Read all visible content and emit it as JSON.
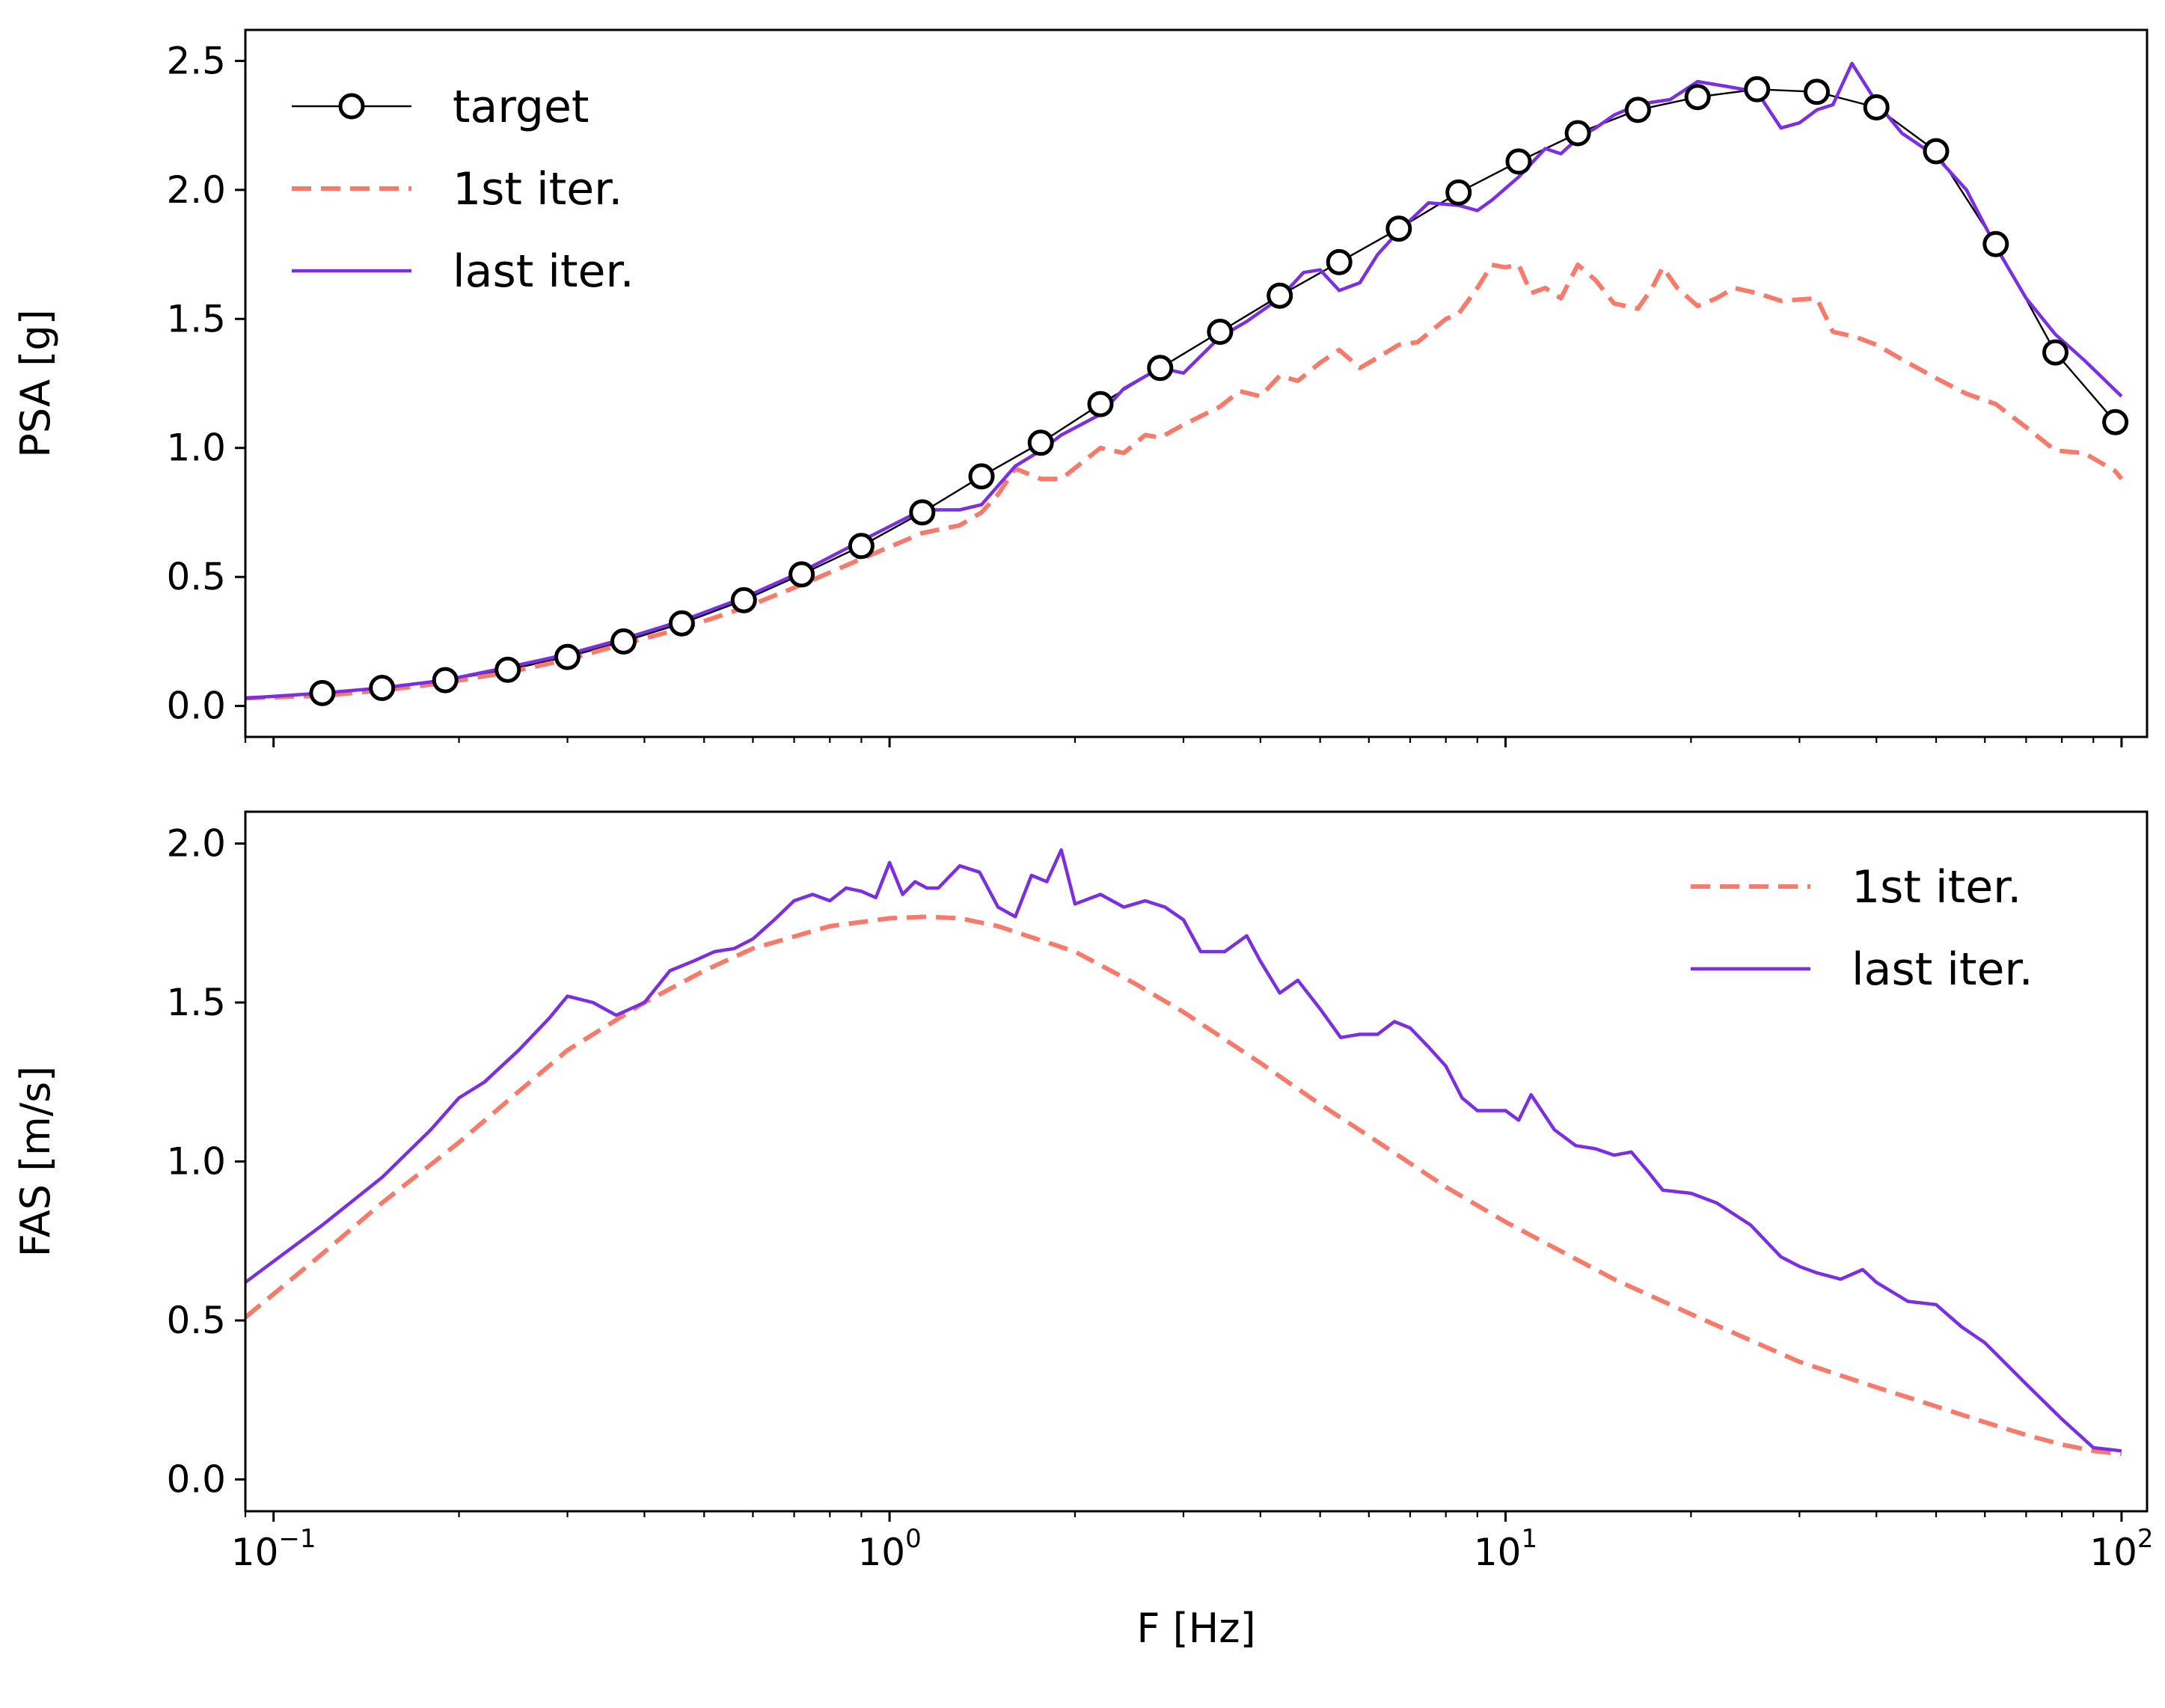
{
  "chart_data": [
    {
      "type": "line",
      "ylabel": "PSA [g]",
      "xlabel": "",
      "xscale": "log",
      "xlim": [
        0.09,
        110
      ],
      "ylim": [
        -0.12,
        2.62
      ],
      "yticks": [
        0.0,
        0.5,
        1.0,
        1.5,
        2.0,
        2.5
      ],
      "ytick_labels": [
        "0.0",
        "0.5",
        "1.0",
        "1.5",
        "2.0",
        "2.5"
      ],
      "legend_position": "top-left",
      "series": [
        {
          "name": "target",
          "style": "line-circles",
          "color": "#000000",
          "x": [
            0.12,
            0.15,
            0.19,
            0.24,
            0.3,
            0.37,
            0.46,
            0.58,
            0.72,
            0.9,
            1.13,
            1.41,
            1.76,
            2.2,
            2.75,
            3.44,
            4.3,
            5.37,
            6.71,
            8.39,
            10.5,
            13.1,
            16.4,
            20.5,
            25.6,
            32.0,
            40.0,
            50.0,
            62.5,
            78.1,
            97.7
          ],
          "y": [
            0.05,
            0.07,
            0.1,
            0.14,
            0.19,
            0.25,
            0.32,
            0.41,
            0.51,
            0.62,
            0.75,
            0.89,
            1.02,
            1.17,
            1.31,
            1.45,
            1.59,
            1.72,
            1.85,
            1.99,
            2.11,
            2.22,
            2.31,
            2.36,
            2.39,
            2.38,
            2.32,
            2.15,
            1.79,
            1.37,
            1.1
          ]
        },
        {
          "name": "1st iter.",
          "style": "dashed",
          "color": "#f87a6a",
          "x": [
            0.09,
            0.12,
            0.15,
            0.19,
            0.24,
            0.3,
            0.37,
            0.46,
            0.58,
            0.72,
            0.9,
            1.13,
            1.3,
            1.41,
            1.5,
            1.6,
            1.76,
            1.9,
            2.2,
            2.4,
            2.6,
            2.75,
            3.0,
            3.44,
            3.7,
            4.0,
            4.3,
            4.6,
            5.0,
            5.37,
            5.8,
            6.2,
            6.71,
            7.2,
            8.0,
            8.39,
            9.0,
            9.5,
            10.0,
            10.5,
            11.0,
            11.6,
            12.3,
            13.1,
            14.0,
            15.0,
            16.4,
            17.3,
            18.0,
            19.0,
            20.5,
            22.0,
            23.5,
            25.6,
            28.0,
            32.0,
            34.0,
            37.0,
            40.0,
            45.0,
            50.0,
            56.0,
            62.5,
            70.0,
            78.1,
            87.0,
            97.7,
            100.0
          ],
          "y": [
            0.03,
            0.04,
            0.06,
            0.09,
            0.13,
            0.18,
            0.24,
            0.3,
            0.38,
            0.47,
            0.57,
            0.67,
            0.7,
            0.75,
            0.82,
            0.92,
            0.88,
            0.88,
            1.0,
            0.98,
            1.05,
            1.04,
            1.09,
            1.16,
            1.22,
            1.2,
            1.28,
            1.26,
            1.33,
            1.38,
            1.31,
            1.35,
            1.4,
            1.41,
            1.5,
            1.52,
            1.62,
            1.71,
            1.7,
            1.71,
            1.6,
            1.62,
            1.58,
            1.71,
            1.65,
            1.56,
            1.54,
            1.62,
            1.7,
            1.62,
            1.55,
            1.58,
            1.62,
            1.6,
            1.57,
            1.58,
            1.45,
            1.43,
            1.4,
            1.33,
            1.27,
            1.21,
            1.17,
            1.08,
            0.99,
            0.98,
            0.91,
            0.88
          ]
        },
        {
          "name": "last iter.",
          "style": "solid",
          "color": "#7b2fe0",
          "x": [
            0.09,
            0.12,
            0.15,
            0.19,
            0.24,
            0.3,
            0.37,
            0.46,
            0.58,
            0.72,
            0.9,
            1.13,
            1.3,
            1.41,
            1.6,
            1.76,
            1.9,
            2.2,
            2.4,
            2.75,
            3.0,
            3.44,
            3.8,
            4.3,
            4.7,
            5.0,
            5.37,
            5.8,
            6.2,
            6.71,
            7.5,
            8.39,
            9.0,
            9.5,
            10.5,
            11.6,
            12.3,
            13.1,
            14.0,
            15.0,
            16.4,
            17.3,
            18.5,
            20.5,
            23.0,
            25.6,
            28.0,
            30.0,
            32.0,
            34.0,
            36.5,
            40.0,
            44.0,
            50.0,
            56.0,
            62.5,
            70.0,
            78.1,
            87.0,
            100.0
          ],
          "y": [
            0.03,
            0.05,
            0.07,
            0.1,
            0.15,
            0.2,
            0.26,
            0.33,
            0.42,
            0.52,
            0.64,
            0.76,
            0.76,
            0.78,
            0.93,
            0.99,
            1.05,
            1.13,
            1.23,
            1.31,
            1.29,
            1.43,
            1.49,
            1.58,
            1.68,
            1.69,
            1.61,
            1.64,
            1.75,
            1.84,
            1.95,
            1.94,
            1.92,
            1.96,
            2.05,
            2.16,
            2.14,
            2.2,
            2.24,
            2.29,
            2.33,
            2.34,
            2.35,
            2.42,
            2.4,
            2.38,
            2.24,
            2.26,
            2.31,
            2.33,
            2.49,
            2.34,
            2.22,
            2.13,
            2.0,
            1.78,
            1.58,
            1.44,
            1.34,
            1.2
          ]
        }
      ]
    },
    {
      "type": "line",
      "ylabel": "FAS [m/s]",
      "xlabel": "F [Hz]",
      "xscale": "log",
      "xlim": [
        0.09,
        110
      ],
      "ylim": [
        -0.1,
        2.1
      ],
      "yticks": [
        0.0,
        0.5,
        1.0,
        1.5,
        2.0
      ],
      "ytick_labels": [
        "0.0",
        "0.5",
        "1.0",
        "1.5",
        "2.0"
      ],
      "xticks": [
        0.1,
        1,
        10,
        100
      ],
      "xtick_labels": [
        {
          "base": "10",
          "exp": "−1"
        },
        {
          "base": "10",
          "exp": "0"
        },
        {
          "base": "10",
          "exp": "1"
        },
        {
          "base": "10",
          "exp": "2"
        }
      ],
      "legend_position": "top-right",
      "series": [
        {
          "name": "1st iter.",
          "style": "dashed",
          "color": "#f87a6a",
          "x": [
            0.09,
            0.12,
            0.15,
            0.2,
            0.25,
            0.3,
            0.4,
            0.5,
            0.6,
            0.8,
            1.0,
            1.15,
            1.3,
            1.5,
            2.0,
            2.5,
            3.0,
            4.0,
            5.0,
            6.0,
            8.0,
            10.0,
            15.0,
            20.0,
            30.0,
            40.0,
            50.0,
            60.0,
            70.0,
            80.0,
            90.0,
            100.0
          ],
          "y": [
            0.51,
            0.71,
            0.87,
            1.06,
            1.22,
            1.35,
            1.5,
            1.6,
            1.67,
            1.74,
            1.765,
            1.77,
            1.765,
            1.74,
            1.66,
            1.56,
            1.47,
            1.31,
            1.18,
            1.08,
            0.92,
            0.81,
            0.63,
            0.52,
            0.37,
            0.29,
            0.23,
            0.18,
            0.14,
            0.11,
            0.09,
            0.08
          ]
        },
        {
          "name": "last iter.",
          "style": "solid",
          "color": "#7b2fe0",
          "x": [
            0.09,
            0.12,
            0.15,
            0.18,
            0.2,
            0.22,
            0.25,
            0.28,
            0.3,
            0.33,
            0.36,
            0.4,
            0.44,
            0.48,
            0.52,
            0.56,
            0.6,
            0.65,
            0.7,
            0.75,
            0.8,
            0.85,
            0.9,
            0.95,
            1.0,
            1.05,
            1.1,
            1.15,
            1.2,
            1.3,
            1.4,
            1.5,
            1.6,
            1.7,
            1.8,
            1.9,
            2.0,
            2.2,
            2.4,
            2.6,
            2.8,
            3.0,
            3.2,
            3.5,
            3.8,
            4.0,
            4.3,
            4.6,
            5.0,
            5.4,
            5.8,
            6.2,
            6.6,
            7.0,
            7.5,
            8.0,
            8.5,
            9.0,
            10.0,
            10.5,
            11.0,
            12.0,
            13.0,
            14.0,
            15.0,
            16.0,
            17.0,
            18.0,
            20.0,
            22.0,
            25.0,
            28.0,
            30.0,
            32.0,
            35.0,
            38.0,
            40.0,
            45.0,
            50.0,
            55.0,
            60.0,
            70.0,
            80.0,
            90.0,
            100.0
          ],
          "y": [
            0.62,
            0.8,
            0.95,
            1.1,
            1.2,
            1.25,
            1.35,
            1.45,
            1.52,
            1.5,
            1.46,
            1.5,
            1.6,
            1.63,
            1.66,
            1.67,
            1.7,
            1.76,
            1.82,
            1.84,
            1.82,
            1.86,
            1.85,
            1.83,
            1.94,
            1.84,
            1.88,
            1.86,
            1.86,
            1.93,
            1.91,
            1.8,
            1.77,
            1.9,
            1.88,
            1.98,
            1.81,
            1.84,
            1.8,
            1.82,
            1.8,
            1.76,
            1.66,
            1.66,
            1.71,
            1.63,
            1.53,
            1.57,
            1.48,
            1.39,
            1.4,
            1.4,
            1.44,
            1.42,
            1.36,
            1.3,
            1.2,
            1.16,
            1.16,
            1.13,
            1.21,
            1.1,
            1.05,
            1.04,
            1.02,
            1.03,
            0.97,
            0.91,
            0.9,
            0.87,
            0.8,
            0.7,
            0.67,
            0.65,
            0.63,
            0.66,
            0.62,
            0.56,
            0.55,
            0.48,
            0.43,
            0.3,
            0.19,
            0.1,
            0.09
          ]
        }
      ]
    }
  ]
}
